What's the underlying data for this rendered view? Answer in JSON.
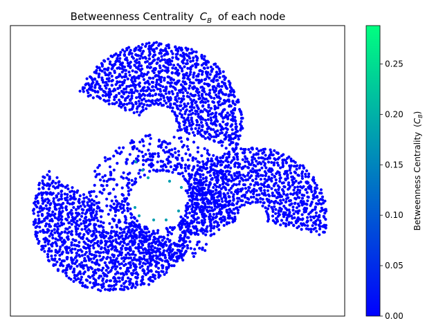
{
  "chart_data": {
    "type": "scatter",
    "title": "Betweenness Centrality",
    "title_symbol": "C",
    "title_subscript": "B",
    "title_suffix": "of each node",
    "xlabel": "",
    "ylabel": "",
    "x_ticks_visible": false,
    "y_ticks_visible": false,
    "colorbar": {
      "label": "Betweenness Centrality",
      "label_symbol": "C",
      "label_subscript": "B",
      "colormap": "winter",
      "color_min": "#0000ff",
      "color_max": "#00ff80",
      "range": [
        0,
        0.288
      ],
      "ticks": [
        "0.00",
        "0.05",
        "0.10",
        "0.15",
        "0.20",
        "0.25"
      ],
      "tick_values": [
        0,
        0.05,
        0.1,
        0.15,
        0.2,
        0.25
      ]
    },
    "points_color": "#0000ff",
    "legend": "none",
    "grid": false,
    "note_values": "Approximately 5000 nodes forming a three-lobed radial network around an empty center; nearly all nodes have betweenness near 0 (blue), a few central connector nodes near 0.12-0.2 (teal)."
  }
}
